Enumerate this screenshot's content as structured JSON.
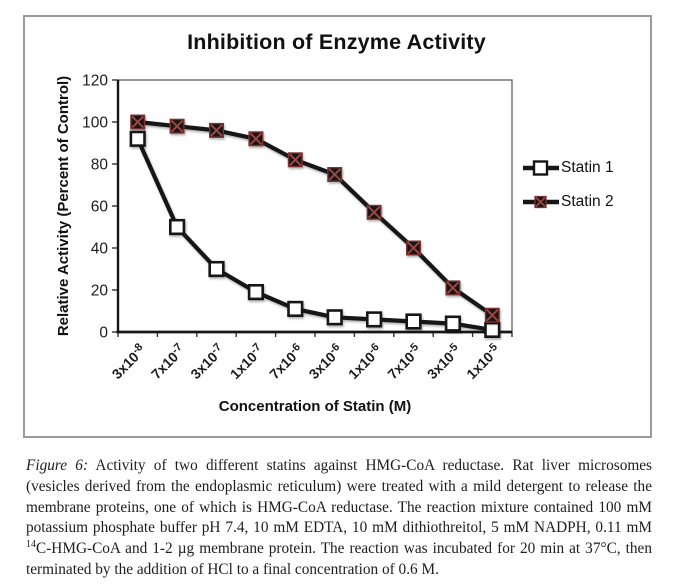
{
  "colors": {
    "chart_border": "#9b9b9b",
    "series_line": "#161616",
    "statin2_cross": "#a04543",
    "statin2_fill": "#141414",
    "text": "#1a1a1a"
  },
  "chart_data": {
    "type": "line",
    "title": "Inhibition of Enzyme Activity",
    "xlabel": "Concentration of Statin (M)",
    "ylabel": "Relative Activity (Percent of Control)",
    "categories": [
      "3x10-8",
      "7x10-7",
      "3x10-7",
      "1x10-7",
      "7x10-6",
      "3x10-6",
      "1x10-6",
      "7x10-5",
      "3x10-5",
      "1x10-5"
    ],
    "y_ticks": [
      0,
      20,
      40,
      60,
      80,
      100,
      120
    ],
    "ylim": [
      0,
      120
    ],
    "grid": false,
    "legend_position": "right",
    "series": [
      {
        "name": "Statin 1",
        "marker": "open-square",
        "line_color": "#161616",
        "marker_fill": "#ffffff",
        "marker_stroke": "#161616",
        "values": [
          92,
          50,
          30,
          19,
          11,
          7,
          6,
          5,
          4,
          1
        ]
      },
      {
        "name": "Statin 2",
        "marker": "crossed-square",
        "line_color": "#161616",
        "marker_fill": "#141414",
        "marker_stroke": "#7e3230",
        "cross_color": "#a04543",
        "values": [
          100,
          98,
          96,
          92,
          82,
          75,
          57,
          40,
          21,
          8
        ]
      }
    ]
  },
  "caption": {
    "label": "Figure 6:",
    "before_sup": " Activity of two different statins against HMG-CoA reductase. Rat liver microsomes (vesicles derived from the endoplasmic reticulum) were treated with a mild detergent to release the membrane proteins, one of which is HMG-CoA reductase. The reaction mixture contained 100 mM potassium phosphate buffer pH 7.4, 10 mM EDTA, 10 mM dithiothreitol, 5 mM NADPH, 0.11 mM ",
    "sup": "14",
    "after_sup": "C-HMG-CoA and 1-2 µg membrane protein. The reaction was incubated for 20 min at 37°C, then terminated by the addition of HCl to a final concentration of 0.6 M."
  }
}
